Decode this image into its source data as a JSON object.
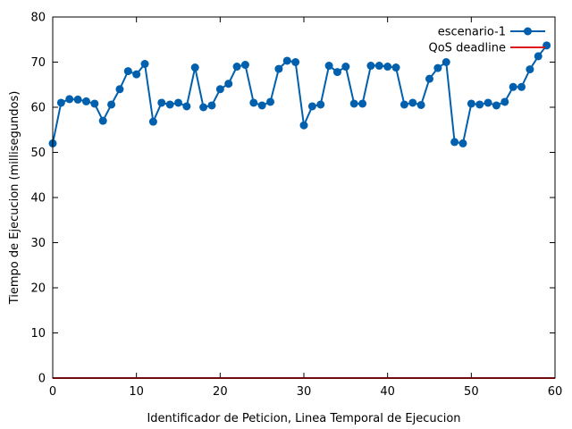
{
  "chart_data": {
    "type": "line",
    "title": "",
    "xlabel": "Identificador de Peticion, Linea Temporal de Ejecucion",
    "ylabel": "Tiempo de Ejecucion (millisegundos)",
    "xlim": [
      0,
      60
    ],
    "ylim": [
      0,
      80
    ],
    "xticks": [
      0,
      10,
      20,
      30,
      40,
      50,
      60
    ],
    "yticks": [
      0,
      10,
      20,
      30,
      40,
      50,
      60,
      70,
      80
    ],
    "grid": false,
    "legend_position": "top-right",
    "series": [
      {
        "name": "escenario-1",
        "color": "#0060ad",
        "marker": "circle",
        "x": [
          0,
          1,
          2,
          3,
          4,
          5,
          6,
          7,
          8,
          9,
          10,
          11,
          12,
          13,
          14,
          15,
          16,
          17,
          18,
          19,
          20,
          21,
          22,
          23,
          24,
          25,
          26,
          27,
          28,
          29,
          30,
          31,
          32,
          33,
          34,
          35,
          36,
          37,
          38,
          39,
          40,
          41,
          42,
          43,
          44,
          45,
          46,
          47,
          48,
          49,
          50,
          51,
          52,
          53,
          54,
          55,
          56,
          57,
          58,
          59
        ],
        "y": [
          52.0,
          61.0,
          61.8,
          61.7,
          61.3,
          60.8,
          57.0,
          60.6,
          64.0,
          68.0,
          67.3,
          69.6,
          56.8,
          61.0,
          60.6,
          61.0,
          60.2,
          68.8,
          60.0,
          60.4,
          64.0,
          65.2,
          69.0,
          69.4,
          61.0,
          60.4,
          61.2,
          68.5,
          70.3,
          70.0,
          56.0,
          60.2,
          60.6,
          69.2,
          67.8,
          69.0,
          60.8,
          60.8,
          69.2,
          69.2,
          69.0,
          68.8,
          60.6,
          61.0,
          60.5,
          66.3,
          68.7,
          70.0,
          52.3,
          52.0,
          60.8,
          60.6,
          61.0,
          60.4,
          61.2,
          64.5,
          64.5,
          68.4,
          71.3,
          73.7
        ]
      },
      {
        "name": "QoS deadline",
        "color": "#dd181f",
        "marker": "none",
        "x": [
          0,
          60
        ],
        "y": [
          0,
          0
        ]
      }
    ]
  }
}
